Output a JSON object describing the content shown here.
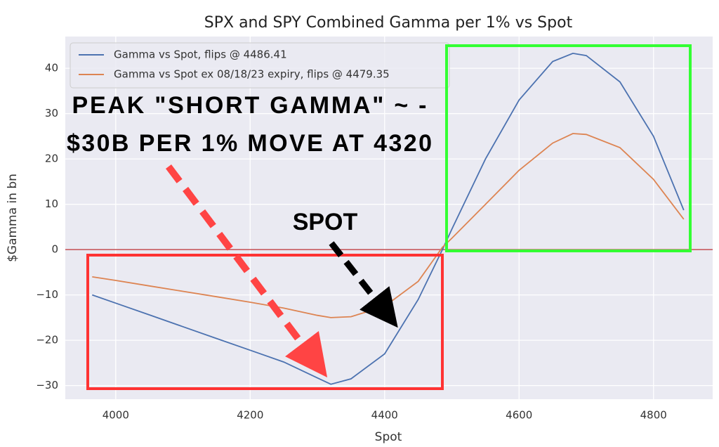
{
  "chart_data": {
    "type": "line",
    "title": "SPX and SPY Combined Gamma per 1% vs Spot",
    "x_label": "Spot",
    "y_label": "$Gamma in bn",
    "x": [
      3965,
      4000,
      4050,
      4100,
      4150,
      4200,
      4250,
      4300,
      4320,
      4350,
      4400,
      4450,
      4486,
      4500,
      4550,
      4600,
      4650,
      4680,
      4700,
      4750,
      4800,
      4845
    ],
    "series": [
      {
        "name": "Gamma vs Spot, flips @ 4486.41",
        "color": "#4c72b0",
        "values": [
          -10,
          -11.8,
          -14.4,
          -17,
          -19.6,
          -22.2,
          -24.8,
          -28.3,
          -29.7,
          -28.5,
          -23,
          -11,
          0,
          4.5,
          20,
          33,
          41.5,
          43.3,
          42.8,
          37,
          25,
          8.7
        ]
      },
      {
        "name": "Gamma vs Spot ex 08/18/23 expiry, flips @ 4479.35",
        "color": "#dd8452",
        "values": [
          -6,
          -6.8,
          -8,
          -9.2,
          -10.4,
          -11.6,
          -12.9,
          -14.5,
          -15,
          -14.8,
          -12.5,
          -7,
          0.5,
          2.5,
          10,
          17.5,
          23.5,
          25.6,
          25.4,
          22.5,
          15.5,
          6.7
        ]
      }
    ],
    "xlim": [
      3925,
      4888
    ],
    "ylim": [
      -33,
      47
    ],
    "xticks": [
      4000,
      4200,
      4400,
      4600,
      4800
    ],
    "yticks": [
      {
        "value": -30,
        "label": "−30"
      },
      {
        "value": -20,
        "label": "−20"
      },
      {
        "value": -10,
        "label": "−10"
      },
      0,
      10,
      20,
      30,
      40
    ],
    "reference_line": 0,
    "reference_color": "#c44e52",
    "grid": true,
    "legend": "upper left",
    "annotations": [
      "PEAK \"SHORT GAMMA\" ~ -",
      "$30B PER 1% MOVE AT 4320",
      "SPOT"
    ]
  }
}
